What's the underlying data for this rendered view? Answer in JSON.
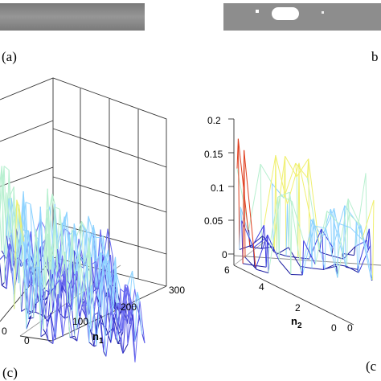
{
  "figure": {
    "panel_labels": {
      "a": "(a)",
      "b": "b",
      "c": "(c)",
      "d": "(c"
    }
  },
  "chart_data": [
    {
      "panel": "c",
      "type": "surface3d",
      "title": "",
      "xlabel": "",
      "ylabel": "n1",
      "ylabel_main": "n",
      "ylabel_sub": "1",
      "y_ticks": [
        "0",
        "100",
        "200",
        "300"
      ],
      "x_ticks": [
        "0",
        "0"
      ],
      "grid": true,
      "colormap": [
        "#1a1aa0",
        "#3f3fd8",
        "#6a6af0",
        "#8fd3ff",
        "#b8f0d0",
        "#f0f070"
      ]
    },
    {
      "panel": "d",
      "type": "surface3d",
      "title": "",
      "zlabel": "",
      "z_ticks": [
        "0",
        "0.05",
        "0.1",
        "0.15",
        "0.2"
      ],
      "zlim": [
        0,
        0.2
      ],
      "y_ticks": [
        "6",
        "4",
        "2",
        "0"
      ],
      "ylabel": "n2",
      "ylabel_main": "n",
      "ylabel_sub": "2",
      "x_ticks": [
        "0"
      ],
      "grid": true,
      "colormap": [
        "#1a1aa0",
        "#4040e0",
        "#8fd3ff",
        "#b8f0d0",
        "#f0f070",
        "#e04020"
      ]
    }
  ]
}
